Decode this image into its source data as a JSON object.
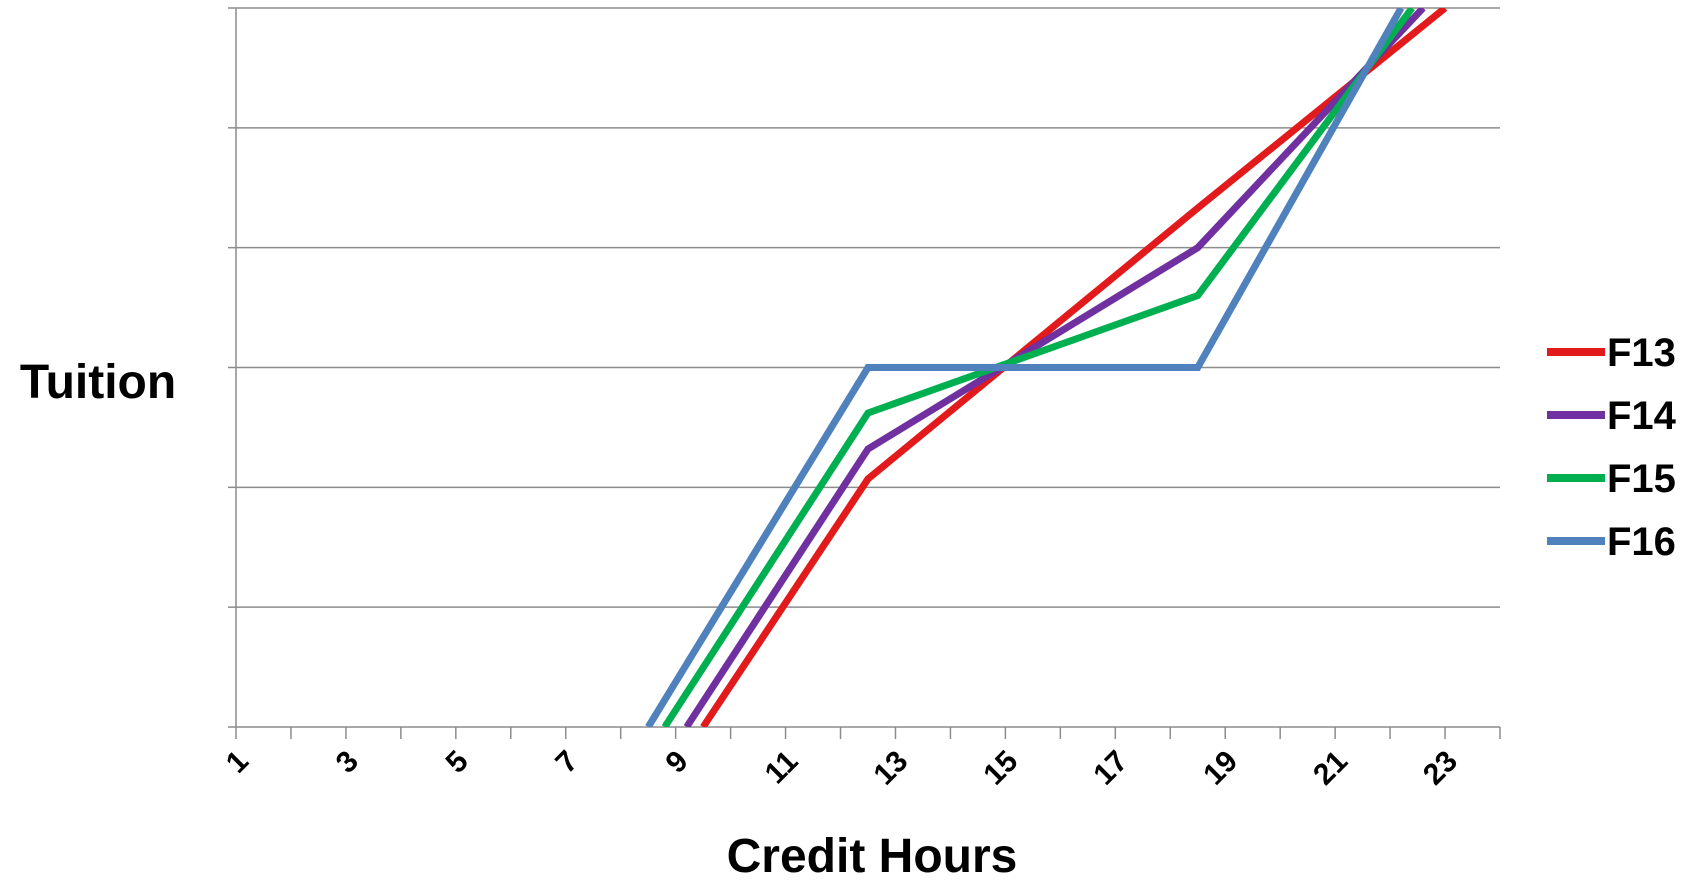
{
  "chart_data": {
    "type": "line",
    "xlabel": "Credit Hours",
    "ylabel": "Tuition",
    "xlim": [
      1,
      24
    ],
    "ylim": [
      0,
      6
    ],
    "x_tick_labels": [
      "1",
      "3",
      "5",
      "7",
      "9",
      "11",
      "13",
      "15",
      "17",
      "19",
      "21",
      "23"
    ],
    "x_tick_values": [
      1,
      3,
      5,
      7,
      9,
      11,
      13,
      15,
      17,
      19,
      21,
      23
    ],
    "grid": true,
    "legend": "right",
    "series": [
      {
        "name": "F13",
        "color": "#e31a1c",
        "points": [
          [
            9.5,
            0
          ],
          [
            12.5,
            2.07
          ],
          [
            18.5,
            4.33
          ],
          [
            23,
            6
          ]
        ]
      },
      {
        "name": "F14",
        "color": "#7030a0",
        "points": [
          [
            9.2,
            0
          ],
          [
            12.5,
            2.32
          ],
          [
            18.5,
            4.0
          ],
          [
            22.6,
            6
          ]
        ]
      },
      {
        "name": "F15",
        "color": "#00b050",
        "points": [
          [
            8.8,
            0
          ],
          [
            12.5,
            2.62
          ],
          [
            18.5,
            3.6
          ],
          [
            22.4,
            6
          ]
        ]
      },
      {
        "name": "F16",
        "color": "#4f81bd",
        "points": [
          [
            8.5,
            0
          ],
          [
            12.5,
            3.0
          ],
          [
            18.5,
            3.0
          ],
          [
            22.2,
            6
          ]
        ]
      }
    ]
  }
}
